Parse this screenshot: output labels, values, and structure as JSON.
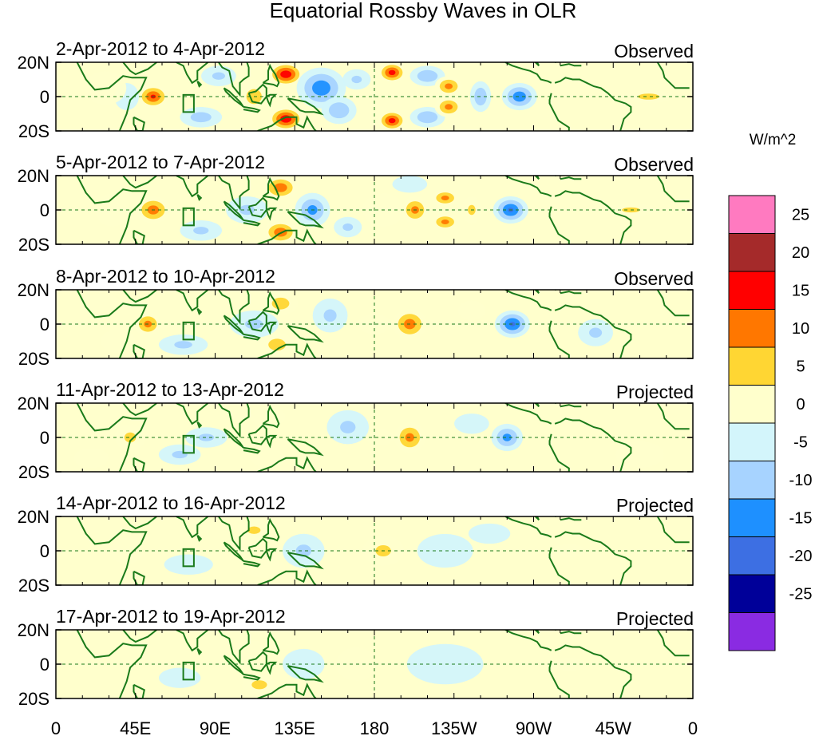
{
  "chart_data": {
    "type": "heatmap",
    "title": "Equatorial Rossby Waves in OLR",
    "variable": "OLR",
    "units": "W/m^2",
    "x_tick_labels": [
      "0",
      "45E",
      "90E",
      "135E",
      "180",
      "135W",
      "90W",
      "45W",
      "0"
    ],
    "x_range_deg_east": [
      0,
      360
    ],
    "y_tick_labels": [
      "20N",
      "0",
      "20S"
    ],
    "y_range_deg": [
      -20,
      20
    ],
    "colorbar": {
      "label": "W/m^2",
      "levels": [
        "25",
        "20",
        "15",
        "10",
        "5",
        "0",
        "-5",
        "-10",
        "-15",
        "-20",
        "-25"
      ],
      "colors": [
        "#ff7ac0",
        "#a52a2a",
        "#ff0000",
        "#ff7700",
        "#ffd633",
        "#ffffcc",
        "#d3f5fb",
        "#a7d3ff",
        "#1e90ff",
        "#3d6fe3",
        "#000099",
        "#8a2be2"
      ]
    },
    "panels": [
      {
        "period": "2-Apr-2012 to 4-Apr-2012",
        "status": "Observed",
        "anomalies": [
          {
            "lon": 55,
            "lat": 0,
            "lon_hw": 9,
            "lat_hw": 7,
            "value": 16
          },
          {
            "lon": 40,
            "lat": 0,
            "lon_hw": 7,
            "lat_hw": 8,
            "value": -5
          },
          {
            "lon": 28,
            "lat": 5,
            "lon_hw": 12,
            "lat_hw": 10,
            "value": 4
          },
          {
            "lon": 82,
            "lat": -12,
            "lon_hw": 12,
            "lat_hw": 6,
            "value": -8
          },
          {
            "lon": 92,
            "lat": 12,
            "lon_hw": 10,
            "lat_hw": 6,
            "value": -6
          },
          {
            "lon": 130,
            "lat": 13,
            "lon_hw": 10,
            "lat_hw": 7,
            "value": 20
          },
          {
            "lon": 130,
            "lat": -13,
            "lon_hw": 10,
            "lat_hw": 7,
            "value": 20
          },
          {
            "lon": 112,
            "lat": 0,
            "lon_hw": 10,
            "lat_hw": 10,
            "value": 7
          },
          {
            "lon": 150,
            "lat": 5,
            "lon_hw": 14,
            "lat_hw": 12,
            "value": -14
          },
          {
            "lon": 160,
            "lat": -8,
            "lon_hw": 10,
            "lat_hw": 8,
            "value": -10
          },
          {
            "lon": 170,
            "lat": 10,
            "lon_hw": 8,
            "lat_hw": 6,
            "value": -6
          },
          {
            "lon": 190,
            "lat": 14,
            "lon_hw": 8,
            "lat_hw": 6,
            "value": 18
          },
          {
            "lon": 190,
            "lat": -14,
            "lon_hw": 8,
            "lat_hw": 6,
            "value": 18
          },
          {
            "lon": 210,
            "lat": 12,
            "lon_hw": 10,
            "lat_hw": 6,
            "value": -10
          },
          {
            "lon": 210,
            "lat": -12,
            "lon_hw": 10,
            "lat_hw": 6,
            "value": -10
          },
          {
            "lon": 222,
            "lat": 6,
            "lon_hw": 8,
            "lat_hw": 6,
            "value": 12
          },
          {
            "lon": 222,
            "lat": -6,
            "lon_hw": 8,
            "lat_hw": 6,
            "value": 12
          },
          {
            "lon": 240,
            "lat": 0,
            "lon_hw": 6,
            "lat_hw": 9,
            "value": -10
          },
          {
            "lon": 262,
            "lat": 0,
            "lon_hw": 10,
            "lat_hw": 8,
            "value": -14
          },
          {
            "lon": 335,
            "lat": 0,
            "lon_hw": 14,
            "lat_hw": 4,
            "value": 7
          }
        ]
      },
      {
        "period": "5-Apr-2012 to 7-Apr-2012",
        "status": "Observed",
        "anomalies": [
          {
            "lon": 55,
            "lat": 0,
            "lon_hw": 10,
            "lat_hw": 8,
            "value": 13
          },
          {
            "lon": 32,
            "lat": 0,
            "lon_hw": 10,
            "lat_hw": 10,
            "value": 4
          },
          {
            "lon": 82,
            "lat": -12,
            "lon_hw": 12,
            "lat_hw": 6,
            "value": -6
          },
          {
            "lon": 127,
            "lat": 13,
            "lon_hw": 10,
            "lat_hw": 7,
            "value": 14
          },
          {
            "lon": 127,
            "lat": -13,
            "lon_hw": 10,
            "lat_hw": 7,
            "value": 14
          },
          {
            "lon": 108,
            "lat": 0,
            "lon_hw": 12,
            "lat_hw": 8,
            "value": -6
          },
          {
            "lon": 145,
            "lat": 0,
            "lon_hw": 10,
            "lat_hw": 10,
            "value": -12
          },
          {
            "lon": 165,
            "lat": -10,
            "lon_hw": 8,
            "lat_hw": 6,
            "value": -6
          },
          {
            "lon": 185,
            "lat": 0,
            "lon_hw": 12,
            "lat_hw": 10,
            "value": 4
          },
          {
            "lon": 203,
            "lat": 0,
            "lon_hw": 8,
            "lat_hw": 8,
            "value": 12
          },
          {
            "lon": 220,
            "lat": 7,
            "lon_hw": 8,
            "lat_hw": 5,
            "value": 12
          },
          {
            "lon": 220,
            "lat": -7,
            "lon_hw": 8,
            "lat_hw": 5,
            "value": 12
          },
          {
            "lon": 200,
            "lat": 15,
            "lon_hw": 10,
            "lat_hw": 5,
            "value": -5
          },
          {
            "lon": 257,
            "lat": 0,
            "lon_hw": 10,
            "lat_hw": 8,
            "value": -16
          },
          {
            "lon": 235,
            "lat": 0,
            "lon_hw": 6,
            "lat_hw": 8,
            "value": 6
          },
          {
            "lon": 325,
            "lat": 0,
            "lon_hw": 14,
            "lat_hw": 4,
            "value": 6
          }
        ]
      },
      {
        "period": "8-Apr-2012 to 10-Apr-2012",
        "status": "Observed",
        "anomalies": [
          {
            "lon": 52,
            "lat": 0,
            "lon_hw": 8,
            "lat_hw": 7,
            "value": 12
          },
          {
            "lon": 35,
            "lat": -10,
            "lon_hw": 10,
            "lat_hw": 7,
            "value": 5
          },
          {
            "lon": 25,
            "lat": 12,
            "lon_hw": 12,
            "lat_hw": 6,
            "value": 4
          },
          {
            "lon": 72,
            "lat": -12,
            "lon_hw": 14,
            "lat_hw": 6,
            "value": -6
          },
          {
            "lon": 127,
            "lat": 12,
            "lon_hw": 10,
            "lat_hw": 7,
            "value": 8
          },
          {
            "lon": 125,
            "lat": -12,
            "lon_hw": 10,
            "lat_hw": 7,
            "value": 8
          },
          {
            "lon": 112,
            "lat": 0,
            "lon_hw": 14,
            "lat_hw": 8,
            "value": -6
          },
          {
            "lon": 155,
            "lat": 5,
            "lon_hw": 10,
            "lat_hw": 10,
            "value": -6
          },
          {
            "lon": 200,
            "lat": 0,
            "lon_hw": 10,
            "lat_hw": 9,
            "value": 13
          },
          {
            "lon": 180,
            "lat": 0,
            "lon_hw": 10,
            "lat_hw": 6,
            "value": 4
          },
          {
            "lon": 258,
            "lat": 0,
            "lon_hw": 10,
            "lat_hw": 8,
            "value": -16
          },
          {
            "lon": 235,
            "lat": 8,
            "lon_hw": 8,
            "lat_hw": 6,
            "value": 4
          },
          {
            "lon": 305,
            "lat": -5,
            "lon_hw": 10,
            "lat_hw": 8,
            "value": -6
          }
        ]
      },
      {
        "period": "11-Apr-2012 to 13-Apr-2012",
        "status": "Projected",
        "anomalies": [
          {
            "lon": 42,
            "lat": 0,
            "lon_hw": 9,
            "lat_hw": 8,
            "value": 6
          },
          {
            "lon": 20,
            "lat": -12,
            "lon_hw": 10,
            "lat_hw": 6,
            "value": 4
          },
          {
            "lon": 70,
            "lat": -10,
            "lon_hw": 12,
            "lat_hw": 6,
            "value": -6
          },
          {
            "lon": 85,
            "lat": 0,
            "lon_hw": 12,
            "lat_hw": 6,
            "value": -6
          },
          {
            "lon": 120,
            "lat": 12,
            "lon_hw": 10,
            "lat_hw": 6,
            "value": 5
          },
          {
            "lon": 120,
            "lat": -12,
            "lon_hw": 10,
            "lat_hw": 6,
            "value": 5
          },
          {
            "lon": 165,
            "lat": 6,
            "lon_hw": 12,
            "lat_hw": 10,
            "value": -6
          },
          {
            "lon": 200,
            "lat": 0,
            "lon_hw": 9,
            "lat_hw": 9,
            "value": 12
          },
          {
            "lon": 183,
            "lat": 0,
            "lon_hw": 8,
            "lat_hw": 5,
            "value": 4
          },
          {
            "lon": 255,
            "lat": 0,
            "lon_hw": 9,
            "lat_hw": 8,
            "value": -12
          },
          {
            "lon": 235,
            "lat": 8,
            "lon_hw": 10,
            "lat_hw": 6,
            "value": -5
          },
          {
            "lon": 330,
            "lat": -10,
            "lon_hw": 14,
            "lat_hw": 8,
            "value": 4
          }
        ]
      },
      {
        "period": "14-Apr-2012 to 16-Apr-2012",
        "status": "Projected",
        "anomalies": [
          {
            "lon": 40,
            "lat": 0,
            "lon_hw": 10,
            "lat_hw": 8,
            "value": 3
          },
          {
            "lon": 75,
            "lat": -8,
            "lon_hw": 14,
            "lat_hw": 6,
            "value": -5
          },
          {
            "lon": 112,
            "lat": 12,
            "lon_hw": 10,
            "lat_hw": 6,
            "value": 6
          },
          {
            "lon": 118,
            "lat": -10,
            "lon_hw": 12,
            "lat_hw": 6,
            "value": 4
          },
          {
            "lon": 140,
            "lat": 0,
            "lon_hw": 12,
            "lat_hw": 10,
            "value": -6
          },
          {
            "lon": 185,
            "lat": 0,
            "lon_hw": 12,
            "lat_hw": 9,
            "value": 6
          },
          {
            "lon": 220,
            "lat": 0,
            "lon_hw": 16,
            "lat_hw": 10,
            "value": -4
          },
          {
            "lon": 245,
            "lat": 10,
            "lon_hw": 12,
            "lat_hw": 6,
            "value": -4
          },
          {
            "lon": 290,
            "lat": 0,
            "lon_hw": 10,
            "lat_hw": 4,
            "value": 3
          }
        ]
      },
      {
        "period": "17-Apr-2012 to 19-Apr-2012",
        "status": "Projected",
        "anomalies": [
          {
            "lon": 70,
            "lat": -8,
            "lon_hw": 12,
            "lat_hw": 6,
            "value": -4
          },
          {
            "lon": 110,
            "lat": 8,
            "lon_hw": 12,
            "lat_hw": 6,
            "value": 4
          },
          {
            "lon": 115,
            "lat": -12,
            "lon_hw": 10,
            "lat_hw": 6,
            "value": 7
          },
          {
            "lon": 140,
            "lat": 0,
            "lon_hw": 12,
            "lat_hw": 9,
            "value": -5
          },
          {
            "lon": 170,
            "lat": 0,
            "lon_hw": 12,
            "lat_hw": 10,
            "value": 3
          },
          {
            "lon": 220,
            "lat": 0,
            "lon_hw": 22,
            "lat_hw": 12,
            "value": -3
          },
          {
            "lon": 290,
            "lat": 0,
            "lon_hw": 10,
            "lat_hw": 4,
            "value": 3
          }
        ]
      }
    ]
  }
}
